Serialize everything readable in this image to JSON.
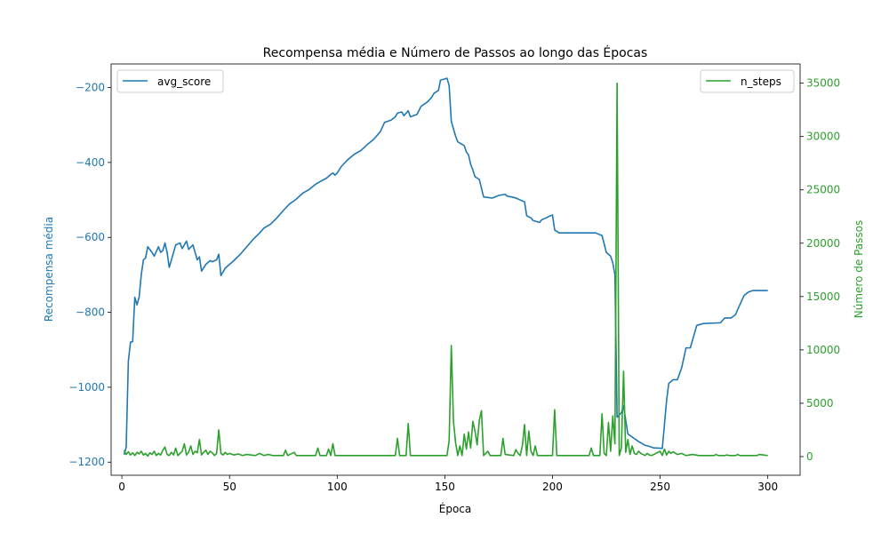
{
  "chart_data": {
    "type": "line",
    "title": "Recompensa média e Número de Passos ao longo das Épocas",
    "xlabel": "Época",
    "ylabel_left": "Recompensa média",
    "ylabel_right": "Número de Passos",
    "xlim": [
      -5,
      315
    ],
    "ylim_left": [
      -1235,
      -137
    ],
    "ylim_right": [
      -1750,
      36800
    ],
    "xticks": [
      0,
      50,
      100,
      150,
      200,
      250,
      300
    ],
    "yticks_left": [
      -1200,
      -1000,
      -800,
      -600,
      -400,
      -200
    ],
    "yticks_right": [
      0,
      5000,
      10000,
      15000,
      20000,
      25000,
      30000,
      35000
    ],
    "grid": false,
    "legend_left_position": "top-left",
    "legend_right_position": "top-right",
    "series": [
      {
        "name": "avg_score",
        "axis": "left",
        "color": "#1f77b4",
        "points": [
          [
            1,
            -1180
          ],
          [
            2,
            -1160
          ],
          [
            3,
            -930
          ],
          [
            4,
            -880
          ],
          [
            5,
            -878
          ],
          [
            6,
            -760
          ],
          [
            7,
            -780
          ],
          [
            8,
            -760
          ],
          [
            9,
            -700
          ],
          [
            10,
            -660
          ],
          [
            11,
            -655
          ],
          [
            12,
            -625
          ],
          [
            14,
            -640
          ],
          [
            15,
            -650
          ],
          [
            17,
            -625
          ],
          [
            18,
            -640
          ],
          [
            19,
            -635
          ],
          [
            20,
            -615
          ],
          [
            21,
            -640
          ],
          [
            22,
            -680
          ],
          [
            23,
            -660
          ],
          [
            25,
            -620
          ],
          [
            27,
            -615
          ],
          [
            28,
            -630
          ],
          [
            30,
            -610
          ],
          [
            31,
            -632
          ],
          [
            33,
            -620
          ],
          [
            35,
            -660
          ],
          [
            36,
            -652
          ],
          [
            37,
            -690
          ],
          [
            39,
            -672
          ],
          [
            41,
            -662
          ],
          [
            42,
            -665
          ],
          [
            44,
            -660
          ],
          [
            45,
            -645
          ],
          [
            46,
            -702
          ],
          [
            48,
            -682
          ],
          [
            50,
            -672
          ],
          [
            52,
            -662
          ],
          [
            55,
            -645
          ],
          [
            58,
            -625
          ],
          [
            61,
            -605
          ],
          [
            64,
            -588
          ],
          [
            66,
            -575
          ],
          [
            69,
            -565
          ],
          [
            72,
            -548
          ],
          [
            75,
            -528
          ],
          [
            78,
            -510
          ],
          [
            81,
            -498
          ],
          [
            84,
            -482
          ],
          [
            87,
            -472
          ],
          [
            90,
            -458
          ],
          [
            93,
            -448
          ],
          [
            95,
            -442
          ],
          [
            97,
            -432
          ],
          [
            98,
            -428
          ],
          [
            99,
            -434
          ],
          [
            100,
            -428
          ],
          [
            102,
            -410
          ],
          [
            105,
            -392
          ],
          [
            108,
            -378
          ],
          [
            111,
            -368
          ],
          [
            114,
            -352
          ],
          [
            117,
            -338
          ],
          [
            120,
            -318
          ],
          [
            122,
            -293
          ],
          [
            125,
            -287
          ],
          [
            127,
            -278
          ],
          [
            128,
            -268
          ],
          [
            130,
            -265
          ],
          [
            131,
            -275
          ],
          [
            133,
            -262
          ],
          [
            134,
            -278
          ],
          [
            137,
            -272
          ],
          [
            139,
            -250
          ],
          [
            142,
            -238
          ],
          [
            144,
            -225
          ],
          [
            145,
            -215
          ],
          [
            147,
            -208
          ],
          [
            148,
            -180
          ],
          [
            150,
            -177
          ],
          [
            151,
            -175
          ],
          [
            152,
            -195
          ],
          [
            153,
            -290
          ],
          [
            155,
            -330
          ],
          [
            156,
            -345
          ],
          [
            159,
            -355
          ],
          [
            160,
            -372
          ],
          [
            161,
            -380
          ],
          [
            162,
            -405
          ],
          [
            163,
            -420
          ],
          [
            164,
            -438
          ],
          [
            166,
            -445
          ],
          [
            168,
            -492
          ],
          [
            172,
            -495
          ],
          [
            175,
            -488
          ],
          [
            178,
            -485
          ],
          [
            179,
            -490
          ],
          [
            181,
            -492
          ],
          [
            183,
            -495
          ],
          [
            185,
            -500
          ],
          [
            187,
            -505
          ],
          [
            188,
            -542
          ],
          [
            190,
            -548
          ],
          [
            191,
            -555
          ],
          [
            194,
            -560
          ],
          [
            195,
            -553
          ],
          [
            197,
            -548
          ],
          [
            198,
            -545
          ],
          [
            200,
            -540
          ],
          [
            201,
            -580
          ],
          [
            203,
            -588
          ],
          [
            220,
            -588
          ],
          [
            223,
            -595
          ],
          [
            225,
            -640
          ],
          [
            227,
            -650
          ],
          [
            228,
            -668
          ],
          [
            229,
            -700
          ],
          [
            230,
            -1080
          ],
          [
            232,
            -1068
          ],
          [
            233,
            -1050
          ],
          [
            235,
            -1125
          ],
          [
            240,
            -1145
          ],
          [
            243,
            -1155
          ],
          [
            245,
            -1158
          ],
          [
            247,
            -1162
          ],
          [
            251,
            -1163
          ],
          [
            253,
            -1035
          ],
          [
            254,
            -990
          ],
          [
            256,
            -980
          ],
          [
            258,
            -980
          ],
          [
            260,
            -948
          ],
          [
            262,
            -895
          ],
          [
            264,
            -895
          ],
          [
            267,
            -835
          ],
          [
            270,
            -830
          ],
          [
            278,
            -828
          ],
          [
            280,
            -815
          ],
          [
            283,
            -815
          ],
          [
            285,
            -806
          ],
          [
            287,
            -780
          ],
          [
            289,
            -755
          ],
          [
            291,
            -746
          ],
          [
            293,
            -742
          ],
          [
            300,
            -742
          ]
        ]
      },
      {
        "name": "n_steps",
        "axis": "right",
        "color": "#2ca02c",
        "points": [
          [
            1,
            600
          ],
          [
            2,
            200
          ],
          [
            3,
            450
          ],
          [
            4,
            150
          ],
          [
            5,
            350
          ],
          [
            6,
            100
          ],
          [
            7,
            400
          ],
          [
            8,
            250
          ],
          [
            9,
            500
          ],
          [
            10,
            150
          ],
          [
            11,
            300
          ],
          [
            12,
            50
          ],
          [
            13,
            350
          ],
          [
            14,
            200
          ],
          [
            15,
            500
          ],
          [
            16,
            100
          ],
          [
            17,
            300
          ],
          [
            18,
            150
          ],
          [
            19,
            600
          ],
          [
            20,
            900
          ],
          [
            21,
            200
          ],
          [
            22,
            100
          ],
          [
            23,
            400
          ],
          [
            24,
            150
          ],
          [
            25,
            800
          ],
          [
            26,
            100
          ],
          [
            27,
            300
          ],
          [
            28,
            500
          ],
          [
            29,
            1200
          ],
          [
            30,
            150
          ],
          [
            31,
            400
          ],
          [
            32,
            1000
          ],
          [
            33,
            200
          ],
          [
            34,
            500
          ],
          [
            35,
            350
          ],
          [
            36,
            1600
          ],
          [
            37,
            150
          ],
          [
            38,
            400
          ],
          [
            39,
            600
          ],
          [
            40,
            200
          ],
          [
            41,
            500
          ],
          [
            42,
            350
          ],
          [
            43,
            100
          ],
          [
            44,
            300
          ],
          [
            45,
            2500
          ],
          [
            46,
            300
          ],
          [
            47,
            150
          ],
          [
            48,
            400
          ],
          [
            49,
            200
          ],
          [
            50,
            300
          ],
          [
            52,
            150
          ],
          [
            54,
            250
          ],
          [
            56,
            100
          ],
          [
            58,
            200
          ],
          [
            60,
            150
          ],
          [
            62,
            100
          ],
          [
            64,
            300
          ],
          [
            66,
            100
          ],
          [
            68,
            200
          ],
          [
            70,
            100
          ],
          [
            75,
            100
          ],
          [
            76,
            600
          ],
          [
            77,
            100
          ],
          [
            80,
            400
          ],
          [
            81,
            100
          ],
          [
            90,
            100
          ],
          [
            91,
            800
          ],
          [
            92,
            100
          ],
          [
            95,
            100
          ],
          [
            96,
            700
          ],
          [
            97,
            100
          ],
          [
            98,
            1200
          ],
          [
            99,
            100
          ],
          [
            127,
            100
          ],
          [
            128,
            1700
          ],
          [
            129,
            100
          ],
          [
            132,
            100
          ],
          [
            133,
            3100
          ],
          [
            134,
            100
          ],
          [
            151,
            100
          ],
          [
            152,
            1500
          ],
          [
            153,
            10400
          ],
          [
            154,
            3300
          ],
          [
            155,
            1300
          ],
          [
            156,
            100
          ],
          [
            157,
            1000
          ],
          [
            158,
            100
          ],
          [
            159,
            2100
          ],
          [
            160,
            700
          ],
          [
            161,
            2300
          ],
          [
            162,
            800
          ],
          [
            163,
            3300
          ],
          [
            164,
            2400
          ],
          [
            165,
            1100
          ],
          [
            166,
            3400
          ],
          [
            167,
            4300
          ],
          [
            168,
            100
          ],
          [
            170,
            500
          ],
          [
            171,
            100
          ],
          [
            176,
            100
          ],
          [
            177,
            1700
          ],
          [
            178,
            200
          ],
          [
            182,
            100
          ],
          [
            183,
            650
          ],
          [
            184,
            300
          ],
          [
            185,
            100
          ],
          [
            186,
            1000
          ],
          [
            187,
            3000
          ],
          [
            188,
            100
          ],
          [
            189,
            2400
          ],
          [
            190,
            500
          ],
          [
            191,
            100
          ],
          [
            192,
            1000
          ],
          [
            193,
            100
          ],
          [
            200,
            100
          ],
          [
            201,
            4400
          ],
          [
            202,
            100
          ],
          [
            217,
            100
          ],
          [
            218,
            800
          ],
          [
            219,
            100
          ],
          [
            222,
            100
          ],
          [
            223,
            4000
          ],
          [
            224,
            300
          ],
          [
            225,
            100
          ],
          [
            226,
            3200
          ],
          [
            227,
            500
          ],
          [
            228,
            3800
          ],
          [
            229,
            1200
          ],
          [
            230,
            35000
          ],
          [
            231,
            100
          ],
          [
            232,
            800
          ],
          [
            233,
            8000
          ],
          [
            234,
            400
          ],
          [
            235,
            1600
          ],
          [
            236,
            200
          ],
          [
            237,
            1000
          ],
          [
            238,
            300
          ],
          [
            239,
            200
          ],
          [
            240,
            500
          ],
          [
            241,
            300
          ],
          [
            242,
            200
          ],
          [
            243,
            100
          ],
          [
            244,
            300
          ],
          [
            245,
            150
          ],
          [
            246,
            100
          ],
          [
            250,
            500
          ],
          [
            251,
            100
          ],
          [
            252,
            700
          ],
          [
            253,
            150
          ],
          [
            254,
            500
          ],
          [
            255,
            300
          ],
          [
            256,
            450
          ],
          [
            258,
            200
          ],
          [
            260,
            300
          ],
          [
            262,
            100
          ],
          [
            265,
            200
          ],
          [
            268,
            100
          ],
          [
            275,
            100
          ],
          [
            276,
            200
          ],
          [
            277,
            100
          ],
          [
            280,
            100
          ],
          [
            281,
            150
          ],
          [
            282,
            100
          ],
          [
            285,
            100
          ],
          [
            286,
            200
          ],
          [
            287,
            100
          ],
          [
            295,
            100
          ],
          [
            296,
            200
          ],
          [
            300,
            100
          ]
        ]
      }
    ]
  }
}
